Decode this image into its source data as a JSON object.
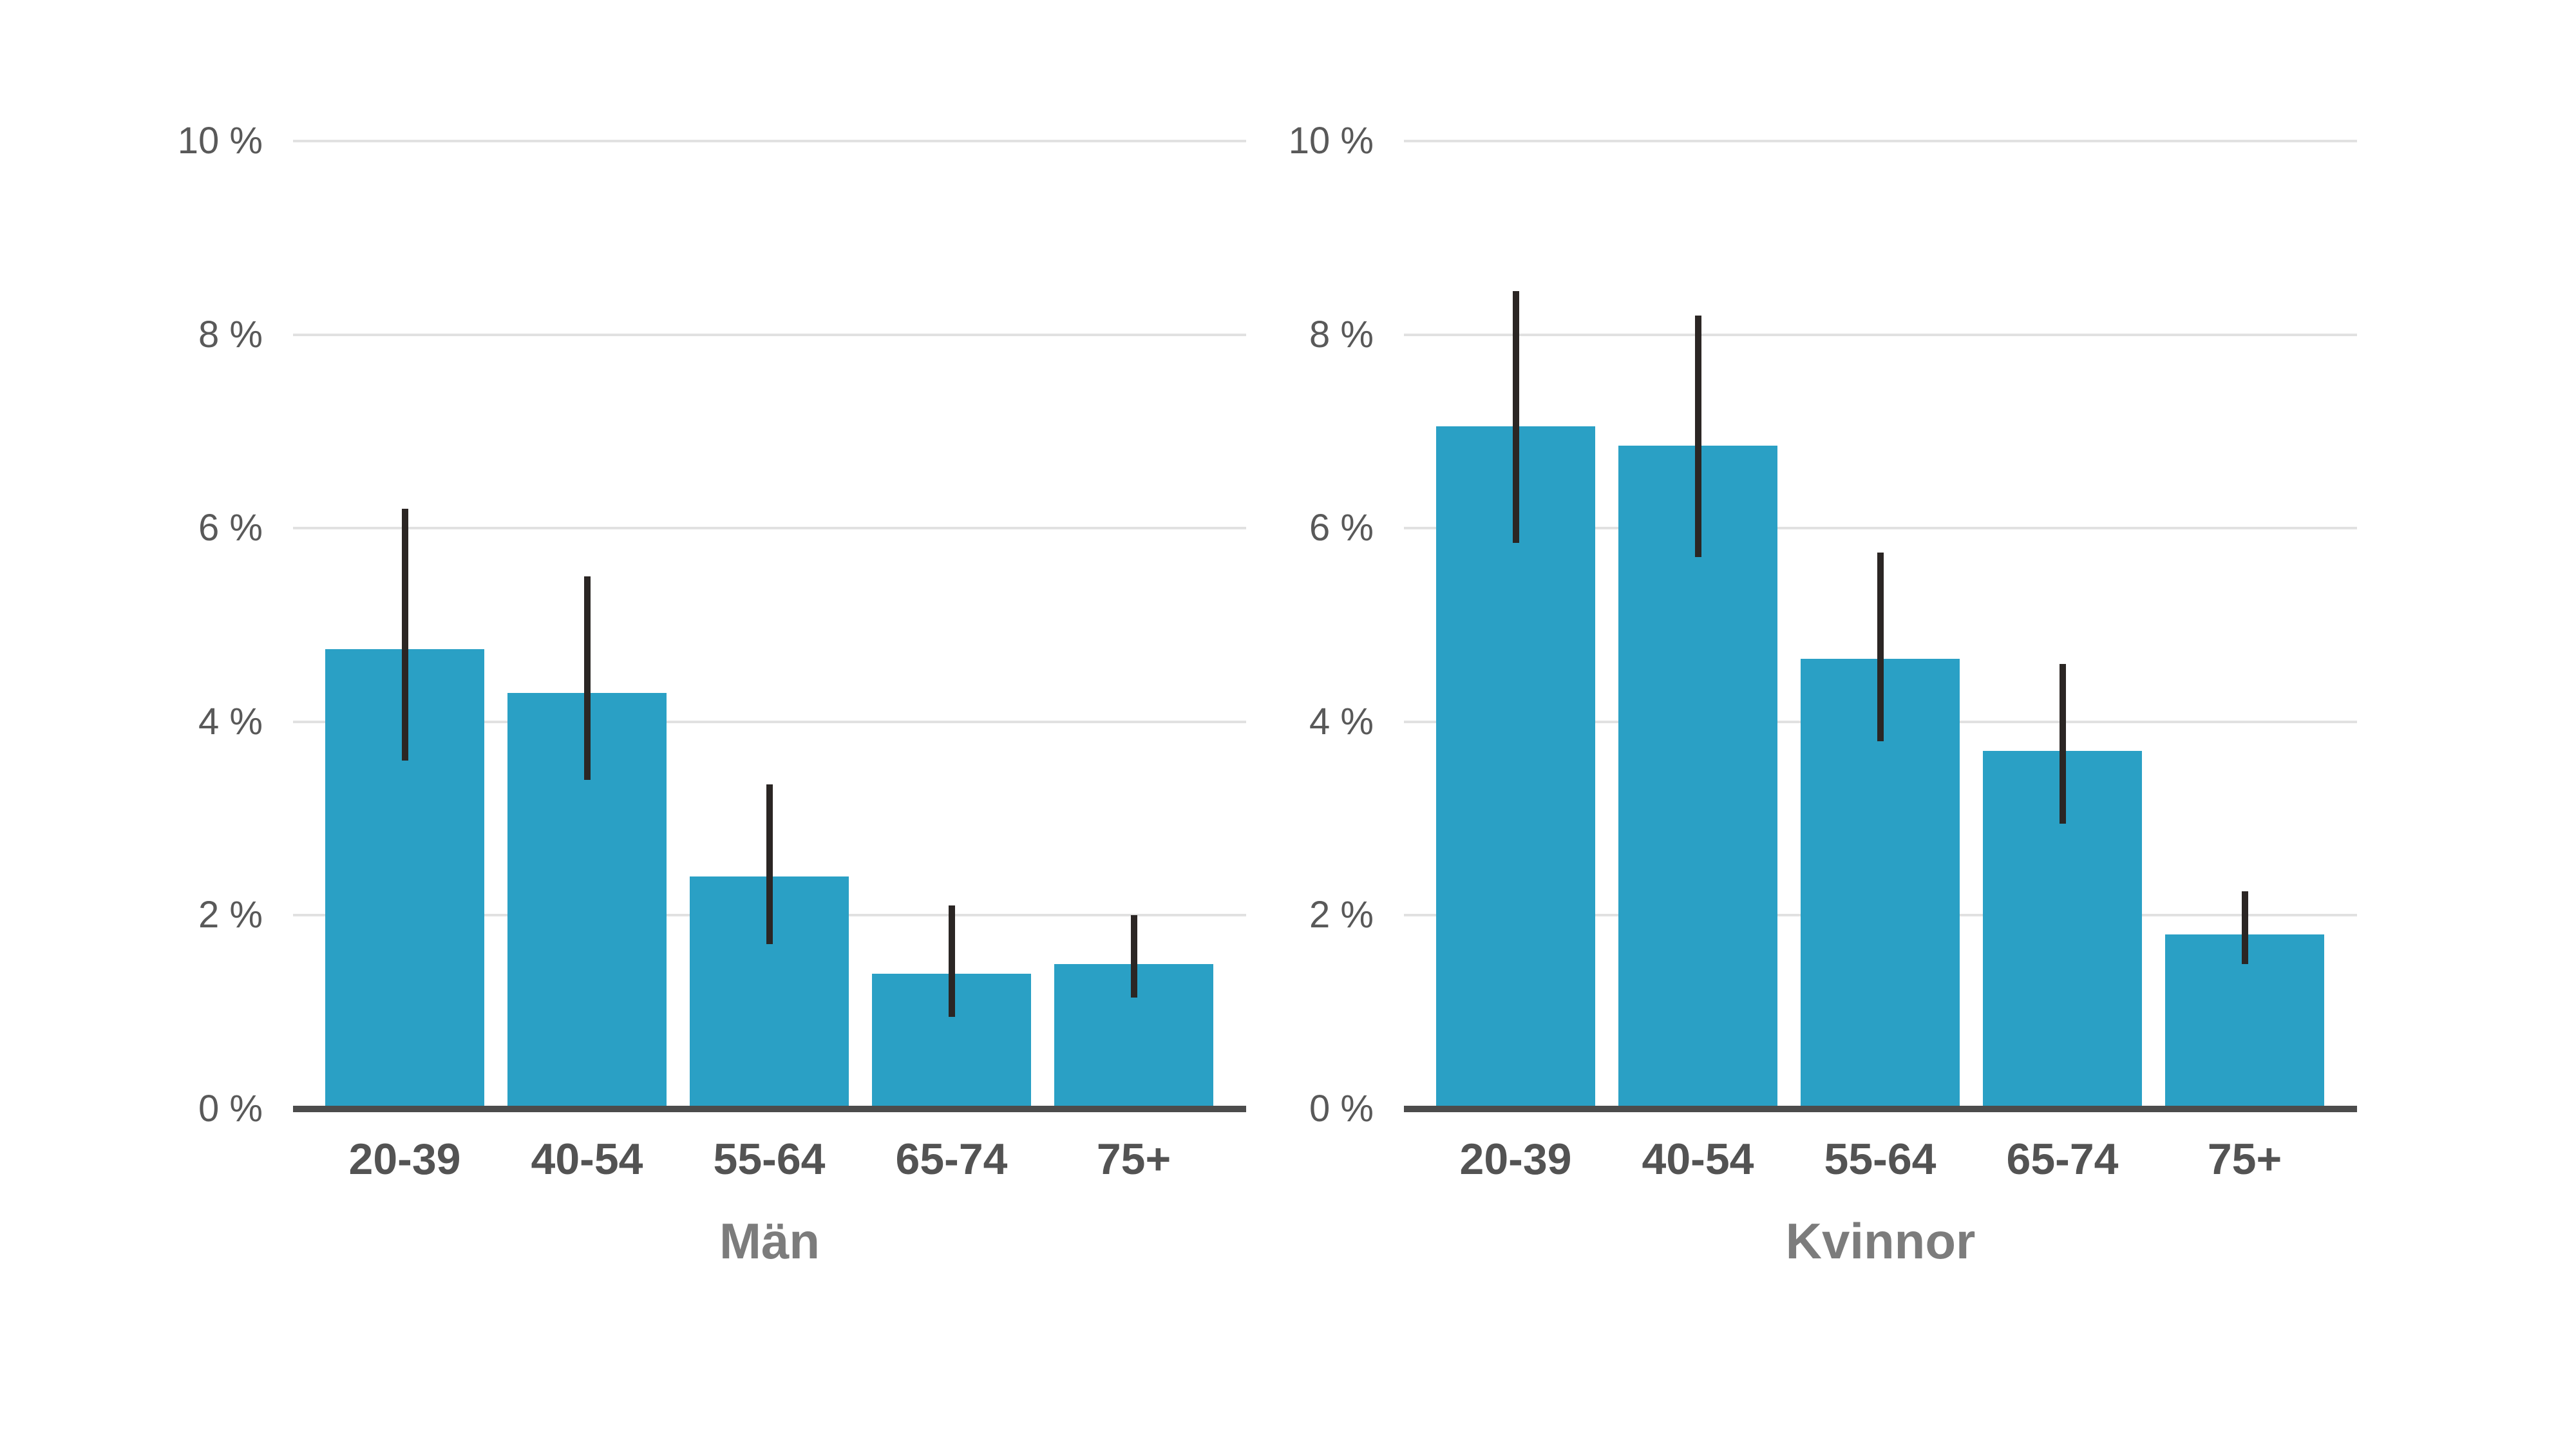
{
  "figure": {
    "background": "#ffffff",
    "description_visible_text_only": true
  },
  "chart_data": {
    "type": "bar",
    "unit": "%",
    "ylim": [
      0,
      10
    ],
    "grid": true,
    "legend": "none",
    "y_ticks": [
      {
        "label": "10 %",
        "value": 10
      },
      {
        "label": "8 %",
        "value": 8
      },
      {
        "label": "6 %",
        "value": 6
      },
      {
        "label": "4 %",
        "value": 4
      },
      {
        "label": "2 %",
        "value": 2
      },
      {
        "label": "0 %",
        "value": 0
      }
    ],
    "categories": [
      "20-39",
      "40-54",
      "55-64",
      "65-74",
      "75+"
    ],
    "panels": [
      {
        "title": "Män",
        "values": [
          4.75,
          4.3,
          2.4,
          1.4,
          1.5
        ],
        "ci_low": [
          3.6,
          3.4,
          1.7,
          0.95,
          1.15
        ],
        "ci_high": [
          6.2,
          5.5,
          3.35,
          2.1,
          2.0
        ]
      },
      {
        "title": "Kvinnor",
        "values": [
          7.05,
          6.85,
          4.65,
          3.7,
          1.8
        ],
        "ci_low": [
          5.85,
          5.7,
          3.8,
          2.95,
          1.5
        ],
        "ci_high": [
          8.45,
          8.2,
          5.75,
          4.6,
          2.25
        ]
      }
    ],
    "colors": {
      "bar": "#2aa0c5",
      "error_bar": "#2b2624",
      "gridline": "#e1e1e1",
      "axis_line": "#4c4c4c",
      "y_tick_label": "#595959",
      "x_tick_label": "#535353",
      "panel_title": "#7c7c7c",
      "background": "#ffffff"
    }
  }
}
